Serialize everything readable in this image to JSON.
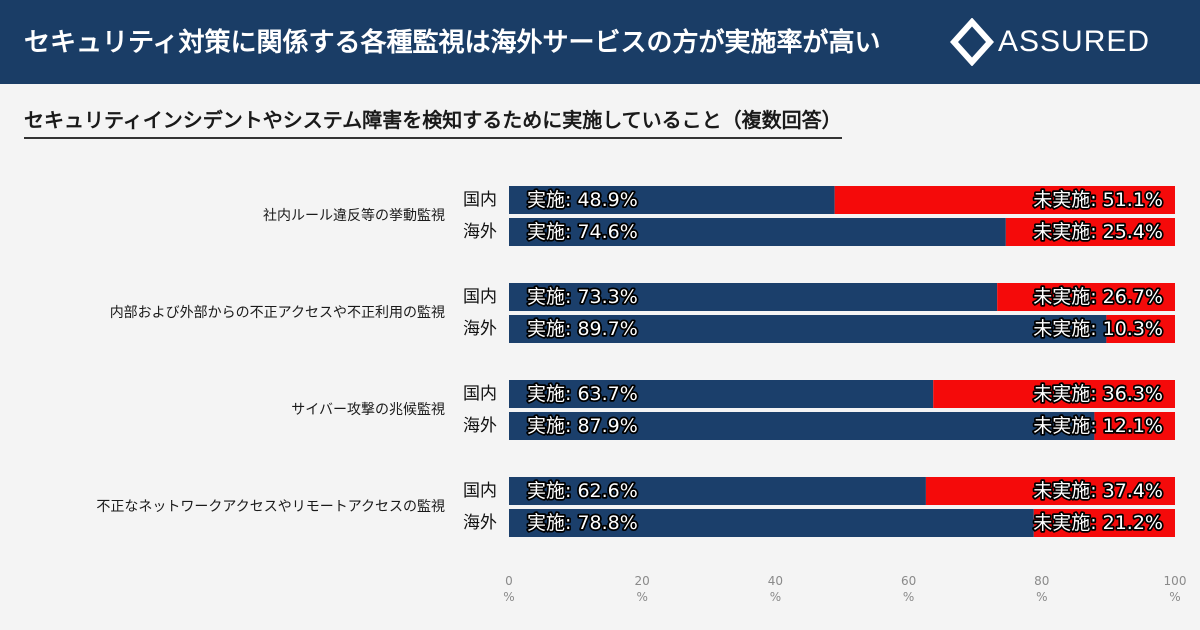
{
  "header": {
    "title": "セキュリティ対策に関係する各種監視は海外サービスの方が実施率が高い",
    "logo_text": "ASSURED"
  },
  "subtitle": "セキュリティインシデントやシステム障害を検知するために実施していること（複数回答）",
  "colors": {
    "header_bg": "#1a3d66",
    "implemented": "#1b3f6b",
    "not_implemented": "#f50a0a"
  },
  "chart_data": {
    "type": "bar",
    "stacked": true,
    "orientation": "horizontal",
    "categories": [
      "社内ルール違反等の挙動監視",
      "内部および外部からの不正アクセスや不正利用の監視",
      "サイバー攻撃の兆候監視",
      "不正なネットワークアクセスやリモートアクセスの監視"
    ],
    "groups": [
      "国内",
      "海外"
    ],
    "series": [
      {
        "name": "実施",
        "label_prefix": "実施: ",
        "values": [
          [
            48.9,
            74.6
          ],
          [
            73.3,
            89.7
          ],
          [
            63.7,
            87.9
          ],
          [
            62.6,
            78.8
          ]
        ]
      },
      {
        "name": "未実施",
        "label_prefix": "未実施: ",
        "values": [
          [
            51.1,
            25.4
          ],
          [
            26.7,
            10.3
          ],
          [
            36.3,
            12.1
          ],
          [
            37.4,
            21.2
          ]
        ]
      }
    ],
    "xlim": [
      0,
      100
    ],
    "xticks": [
      0,
      20,
      40,
      60,
      80,
      100
    ],
    "tick_unit": "%",
    "grid": false
  }
}
